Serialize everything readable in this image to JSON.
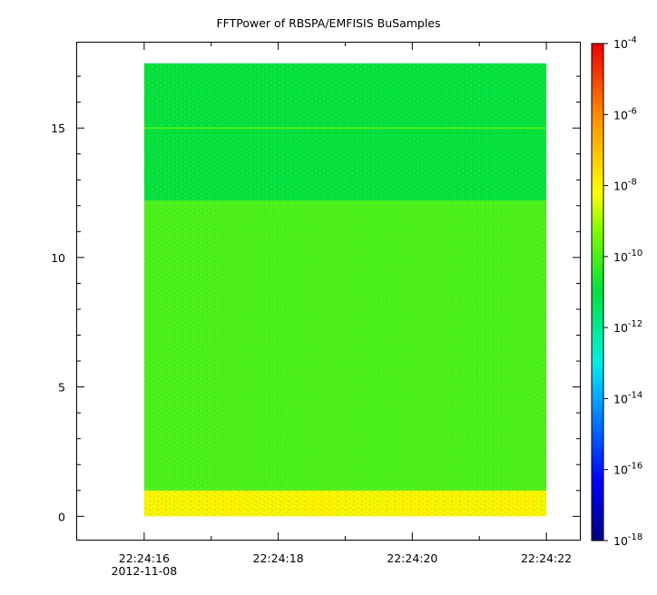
{
  "chart_data": {
    "type": "heatmap",
    "title": "FFTPower of RBSPA/EMFISIS  BuSamples",
    "x_axis": {
      "range": [
        "22:24:15.0",
        "22:24:22.5"
      ],
      "tick_labels": [
        "22:24:16",
        "22:24:18",
        "22:24:20",
        "22:24:22"
      ],
      "tick_values_sec": [
        16,
        18,
        20,
        22
      ],
      "minor_tick_values_sec": [
        17,
        19,
        21
      ],
      "date_label": "2012-11-08"
    },
    "y_axis": {
      "range": [
        -0.9,
        18.3
      ],
      "tick_values": [
        0,
        5,
        10,
        15
      ],
      "tick_labels": [
        "0",
        "5",
        "10",
        "15"
      ]
    },
    "data_extent": {
      "x_start": "22:24:16.0",
      "x_end": "22:24:22.0",
      "y_start": 0,
      "y_end": 17.5
    },
    "colorbar": {
      "scale": "log",
      "range": [
        1e-18,
        0.0001
      ],
      "colormap": "rainbow (dark blue to red)",
      "tick_exponents": [
        -18,
        -16,
        -14,
        -12,
        -10,
        -8,
        -6,
        -4
      ],
      "tick_base": "10"
    },
    "features": [
      {
        "description": "bright band near bottom",
        "y_range": [
          0,
          1.0
        ],
        "approx_power": 1e-08
      },
      {
        "description": "mid band",
        "y_range": [
          1.0,
          12.2
        ],
        "approx_power": 1e-10
      },
      {
        "description": "upper band",
        "y_range": [
          12.2,
          17.5
        ],
        "approx_power": 1e-11
      },
      {
        "description": "line",
        "y": 15,
        "approx_power": 1e-10
      }
    ],
    "grid": false,
    "legend": "colorbar right"
  }
}
